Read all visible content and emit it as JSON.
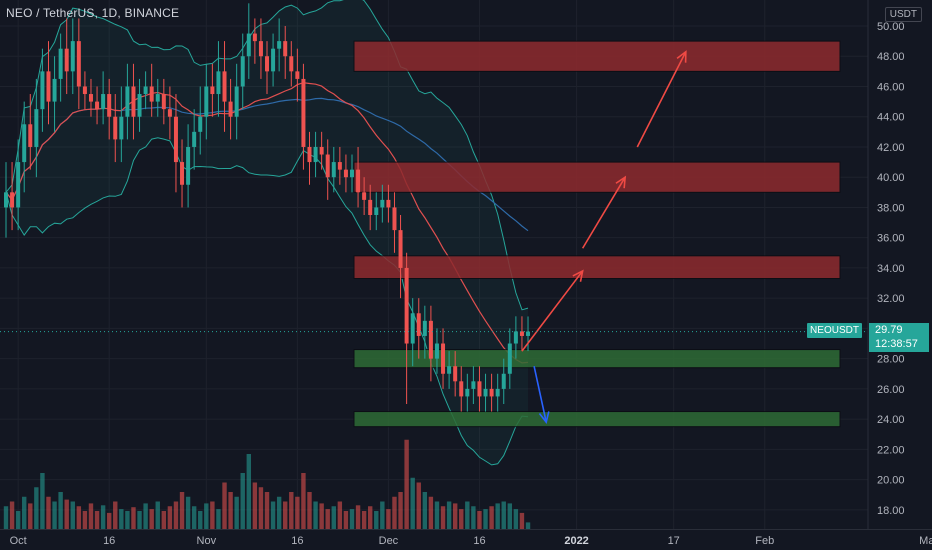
{
  "header": {
    "title": "NEO / TetherUS, 1D, BINANCE",
    "unit": "USDT"
  },
  "price_marker": {
    "symbol": "NEOUSDT",
    "price": "29.79",
    "countdown": "12:38:57"
  },
  "colors": {
    "bg": "#131722",
    "up": "#26a69a",
    "down": "#ef5350",
    "zone_red": "#8e2a2e",
    "zone_green": "#2e6b35",
    "arrow_red": "#f04a44",
    "arrow_blue": "#2962ff",
    "ma_red": "#e04f4f",
    "ma_blue": "#2e6aa8",
    "bb": "#26a69a"
  },
  "chart_data": {
    "type": "candlestick",
    "ylim": [
      17,
      51
    ],
    "yticks": [
      "18.00",
      "20.00",
      "22.00",
      "24.00",
      "26.00",
      "28.00",
      "30.00",
      "32.00",
      "34.00",
      "36.00",
      "38.00",
      "40.00",
      "42.00",
      "44.00",
      "46.00",
      "48.00",
      "50.00"
    ],
    "xticks": [
      {
        "label": "Oct",
        "bar": 2,
        "bold": false
      },
      {
        "label": "16",
        "bar": 17,
        "bold": false
      },
      {
        "label": "Nov",
        "bar": 33,
        "bold": false
      },
      {
        "label": "16",
        "bar": 48,
        "bold": false
      },
      {
        "label": "Dec",
        "bar": 63,
        "bold": false
      },
      {
        "label": "16",
        "bar": 78,
        "bold": false
      },
      {
        "label": "2022",
        "bar": 94,
        "bold": true
      },
      {
        "label": "17",
        "bar": 110,
        "bold": false
      },
      {
        "label": "Feb",
        "bar": 125,
        "bold": false
      },
      {
        "label": "Mar",
        "bar": 152,
        "bold": false
      }
    ],
    "close": [
      39,
      38,
      41,
      43.5,
      42,
      44.5,
      47,
      45,
      46.5,
      48.5,
      47,
      49,
      46,
      45.5,
      45,
      44.5,
      45.5,
      44,
      42.5,
      44,
      46,
      44,
      45.5,
      46,
      45,
      45.5,
      44.5,
      44,
      41,
      39.5,
      42,
      43,
      44,
      46,
      45.5,
      47,
      45,
      44,
      46,
      48,
      49.5,
      49,
      48,
      47,
      48.5,
      49,
      48,
      47,
      46.5,
      42,
      41,
      42,
      41.5,
      40,
      41,
      40.5,
      40,
      40.5,
      39,
      38.5,
      37.5,
      38,
      38.5,
      38,
      36.5,
      34,
      29,
      31,
      29.5,
      30.5,
      28,
      29,
      27,
      27.5,
      26.5,
      25.5,
      26,
      26.5,
      25.5,
      26,
      25.5,
      26,
      27,
      29,
      29.8,
      29.5,
      29.79
    ],
    "high_offset": [
      2,
      2,
      1.5,
      1.5,
      2,
      2,
      1.5,
      2,
      1.5,
      1,
      2,
      1.5,
      1.5,
      1,
      1,
      1,
      1.5,
      1,
      1.5,
      2,
      1.5,
      1.5,
      1,
      1,
      1.5,
      1,
      1,
      1.5,
      1.5,
      1.5,
      1.5,
      1.5,
      2,
      1.5,
      1.5,
      2,
      2,
      1.5,
      1.5,
      1.5,
      2,
      1,
      1.5,
      1,
      1,
      1.5,
      1,
      1,
      1.5,
      1,
      1,
      1,
      1,
      1,
      1,
      1,
      1,
      1,
      1.5,
      1,
      1,
      1,
      1,
      1,
      1,
      1,
      1,
      1,
      1,
      1,
      1,
      1,
      1,
      1,
      1,
      1,
      1,
      1,
      1,
      1,
      1,
      1,
      1,
      1,
      1,
      1,
      1
    ],
    "low_offset": [
      2,
      1.5,
      1.5,
      2,
      1.5,
      2,
      1.5,
      1.5,
      2,
      1.5,
      1.5,
      1.5,
      1.5,
      1,
      1,
      1,
      1,
      1.5,
      1.5,
      1.5,
      1.5,
      1.5,
      1,
      1,
      1,
      1,
      1,
      1.5,
      2,
      1.5,
      1.5,
      1.5,
      1.5,
      1.5,
      1.5,
      1.5,
      2,
      1.5,
      1.5,
      1.5,
      1.5,
      1.5,
      1.5,
      1.5,
      1,
      1.5,
      1.5,
      1,
      1.5,
      1.5,
      1.5,
      1,
      1,
      1.5,
      1,
      1,
      1,
      1,
      1,
      1,
      1,
      1,
      1,
      1,
      1.5,
      2,
      4,
      1.5,
      1.5,
      1.5,
      1.5,
      1,
      1,
      1,
      1,
      1,
      1,
      1,
      1,
      1,
      1,
      1,
      1,
      1,
      1,
      1,
      1
    ],
    "volume": [
      0.25,
      0.3,
      0.2,
      0.35,
      0.28,
      0.45,
      0.6,
      0.35,
      0.3,
      0.4,
      0.32,
      0.3,
      0.25,
      0.2,
      0.28,
      0.2,
      0.26,
      0.18,
      0.3,
      0.22,
      0.2,
      0.24,
      0.2,
      0.28,
      0.22,
      0.3,
      0.2,
      0.25,
      0.3,
      0.4,
      0.35,
      0.25,
      0.2,
      0.28,
      0.3,
      0.22,
      0.5,
      0.4,
      0.35,
      0.6,
      0.8,
      0.5,
      0.45,
      0.4,
      0.3,
      0.35,
      0.3,
      0.4,
      0.35,
      0.6,
      0.4,
      0.3,
      0.28,
      0.22,
      0.25,
      0.3,
      0.2,
      0.22,
      0.26,
      0.2,
      0.25,
      0.2,
      0.3,
      0.22,
      0.35,
      0.4,
      0.95,
      0.55,
      0.5,
      0.4,
      0.35,
      0.3,
      0.25,
      0.3,
      0.28,
      0.22,
      0.3,
      0.25,
      0.2,
      0.22,
      0.25,
      0.28,
      0.3,
      0.28,
      0.22,
      0.18,
      0.08
    ],
    "zones": [
      {
        "kind": "resistance",
        "from": 47,
        "to": 49
      },
      {
        "kind": "resistance",
        "from": 39,
        "to": 41
      },
      {
        "kind": "resistance",
        "from": 33.3,
        "to": 34.8
      },
      {
        "kind": "support",
        "from": 27.4,
        "to": 28.6
      },
      {
        "kind": "support",
        "from": 23.5,
        "to": 24.5
      }
    ],
    "arrows": [
      {
        "color": "red",
        "from": [
          85,
          28.5
        ],
        "to": [
          95,
          33.8
        ]
      },
      {
        "color": "red",
        "from": [
          95,
          35.3
        ],
        "to": [
          102,
          40
        ]
      },
      {
        "color": "red",
        "from": [
          104,
          42
        ],
        "to": [
          112,
          48.3
        ]
      },
      {
        "color": "blue",
        "from": [
          87,
          27.5
        ],
        "to": [
          89,
          23.8
        ]
      }
    ]
  }
}
